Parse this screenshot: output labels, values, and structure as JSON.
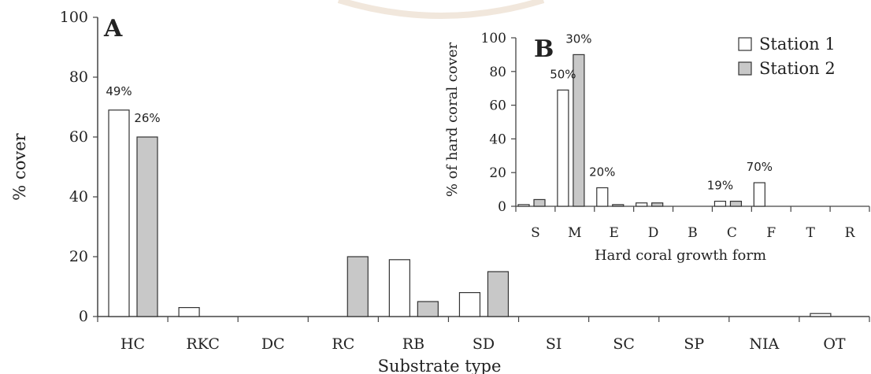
{
  "chart_data": [
    {
      "panel": "A",
      "type": "bar",
      "xlabel": "Substrate type",
      "ylabel": "% cover",
      "ylim": [
        0,
        100
      ],
      "yticks": [
        0,
        20,
        40,
        60,
        80,
        100
      ],
      "categories": [
        "HC",
        "RKC",
        "DC",
        "RC",
        "RB",
        "SD",
        "SI",
        "SC",
        "SP",
        "NIA",
        "OT"
      ],
      "series": [
        {
          "name": "Station 1",
          "color": "#ffffff",
          "values": [
            69,
            3,
            0,
            0,
            19,
            8,
            0,
            0,
            0,
            0,
            1
          ]
        },
        {
          "name": "Station 2",
          "color": "#c8c8c8",
          "values": [
            60,
            0,
            0,
            20,
            5,
            15,
            0,
            0,
            0,
            0,
            0
          ]
        }
      ],
      "annotations": [
        {
          "category": "HC",
          "series": "Station 1",
          "text": "49%"
        },
        {
          "category": "HC",
          "series": "Station 2",
          "text": "26%"
        }
      ],
      "legend": {
        "placement": "top-right",
        "entries": [
          "Station 1",
          "Station 2"
        ]
      }
    },
    {
      "panel": "B",
      "type": "bar",
      "placement": "inset-top-right",
      "xlabel": "Hard coral growth form",
      "ylabel": "% of hard coral cover",
      "ylim": [
        0,
        100
      ],
      "yticks": [
        0,
        20,
        40,
        60,
        80,
        100
      ],
      "categories": [
        "S",
        "M",
        "E",
        "D",
        "B",
        "C",
        "F",
        "T",
        "R"
      ],
      "series": [
        {
          "name": "Station 1",
          "color": "#ffffff",
          "values": [
            1,
            69,
            11,
            2,
            0,
            3,
            14,
            0,
            0
          ]
        },
        {
          "name": "Station 2",
          "color": "#c8c8c8",
          "values": [
            4,
            90,
            1,
            2,
            0,
            3,
            0,
            0,
            0
          ]
        }
      ],
      "annotations": [
        {
          "category": "M",
          "series": "Station 1",
          "text": "50%"
        },
        {
          "category": "M",
          "series": "Station 2",
          "text": "30%"
        },
        {
          "category": "E",
          "series": "Station 1",
          "text": "20%"
        },
        {
          "category": "C",
          "series": "Station 1",
          "text": "19%"
        },
        {
          "category": "F",
          "series": "Station 1",
          "text": "70%"
        }
      ]
    }
  ]
}
